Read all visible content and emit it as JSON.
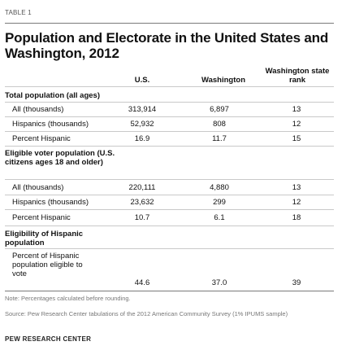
{
  "label": "TABLE 1",
  "title": "Population and Electorate in the United States and Washington, 2012",
  "columns": {
    "us": "U.S.",
    "wa": "Washington",
    "rank": "Washington state rank"
  },
  "sections": [
    {
      "heading": "Total population (all ages)",
      "rows": [
        {
          "label": "All (thousands)",
          "us": "313,914",
          "wa": "6,897",
          "rank": "13"
        },
        {
          "label": "Hispanics (thousands)",
          "us": "52,932",
          "wa": "808",
          "rank": "12"
        },
        {
          "label": "Percent Hispanic",
          "us": "16.9",
          "wa": "11.7",
          "rank": "15"
        }
      ]
    },
    {
      "heading": "Eligible voter population (U.S. citizens ages 18 and older)",
      "rows": [
        {
          "label": "All (thousands)",
          "us": "220,111",
          "wa": "4,880",
          "rank": "13"
        },
        {
          "label": "Hispanics (thousands)",
          "us": "23,632",
          "wa": "299",
          "rank": "12"
        },
        {
          "label": "Percent Hispanic",
          "us": "10.7",
          "wa": "6.1",
          "rank": "18"
        }
      ]
    },
    {
      "heading": "Eligibility of Hispanic population",
      "rows": [
        {
          "label": "Percent of Hispanic population eligible to vote",
          "us": "44.6",
          "wa": "37.0",
          "rank": "39"
        }
      ]
    }
  ],
  "note": "Note: Percentages calculated before rounding.",
  "source": "Source: Pew Research Center tabulations of the 2012 American Community Survey (1% IPUMS sample)",
  "footer": "PEW RESEARCH CENTER"
}
